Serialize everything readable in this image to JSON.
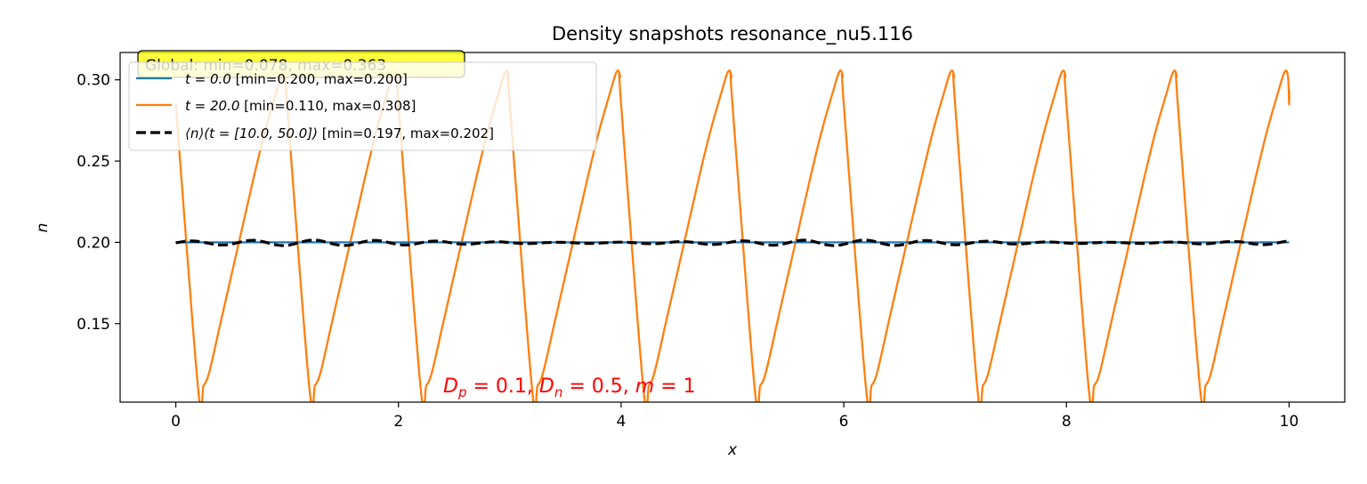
{
  "chart_data": {
    "type": "line",
    "title": "Density snapshots resonance_nu5.116",
    "xlabel": "x",
    "ylabel": "n",
    "xlim": [
      -0.5,
      10.5
    ],
    "ylim": [
      0.1017,
      0.3168
    ],
    "xticks": [
      0,
      2,
      4,
      6,
      8,
      10
    ],
    "xtick_labels": [
      "0",
      "2",
      "4",
      "6",
      "8",
      "10"
    ],
    "yticks": [
      0.15,
      0.2,
      0.25,
      0.3
    ],
    "ytick_labels": [
      "0.15",
      "0.20",
      "0.25",
      "0.30"
    ],
    "grid": false,
    "legend_position": "upper-left",
    "colors": {
      "t0": "#1f77b4",
      "t20": "#ff7f0e",
      "mean": "#000000",
      "annotation": "#ff0000",
      "global_box": "#ffff00"
    },
    "series": [
      {
        "name": "t = 0.0 [min=0.200, max=0.200]",
        "style": "solid",
        "x": [
          0,
          10
        ],
        "y": [
          0.2,
          0.2
        ]
      },
      {
        "name": "t = 20.0 [min=0.110, max=0.308]",
        "style": "solid",
        "generator": "periodic-sawtooth",
        "x_range": [
          0,
          10
        ],
        "period_x": [
          0,
          0.2,
          0.25,
          0.3,
          0.4,
          0.5,
          0.6,
          0.7,
          0.8,
          0.9,
          0.96,
          0.99,
          1.0
        ],
        "period_y": [
          0.285,
          0.11,
          0.112,
          0.12,
          0.15,
          0.18,
          0.21,
          0.24,
          0.268,
          0.292,
          0.305,
          0.302,
          0.285
        ],
        "last_x": 10,
        "last_y": 0.294
      },
      {
        "name": "⟨n⟩(t = [10.0, 50.0]) [min=0.197, max=0.202]",
        "style": "dashed",
        "generator": "wavy",
        "x_range": [
          0,
          10
        ],
        "base": 0.1997,
        "amplitude": 0.0017,
        "wavelength": 0.55
      }
    ],
    "legend": {
      "global": "Global: min=0.078, max=0.363",
      "t0_prefix": "t = 0.0",
      "t0_suffix": " [min=0.200, max=0.200]",
      "t20_prefix": "t = 20.0",
      "t20_suffix": " [min=0.110, max=0.308]",
      "mean_math": "⟨n⟩(t = [10.0, 50.0])",
      "mean_suffix": " [min=0.197, max=0.202]"
    },
    "annotation": "D_p = 0.1, D_n = 0.5, m = 1",
    "annotation_parts": {
      "dp": "D",
      "dp_sub": "p",
      "dp_val": " = 0.1, ",
      "dn": "D",
      "dn_sub": "n",
      "dn_val": " = 0.5, ",
      "m": "m",
      "m_val": " = 1"
    }
  }
}
